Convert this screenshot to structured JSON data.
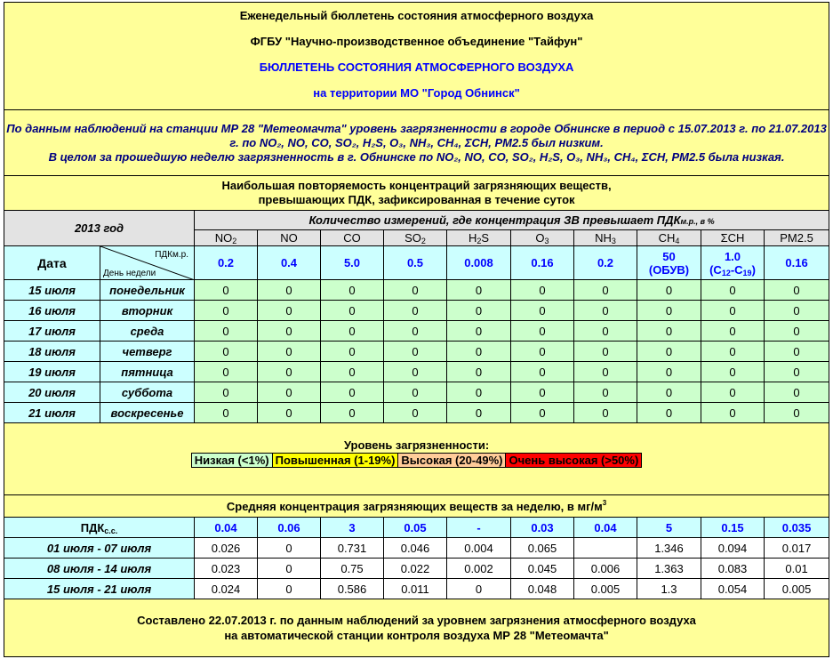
{
  "header": {
    "line1": "Еженедельный бюллетень состояния атмосферного воздуха",
    "line2": "ФГБУ \"Научно-производственное объединение \"Тайфун\"",
    "line3": "БЮЛЛЕТЕНЬ СОСТОЯНИЯ АТМОСФЕРНОГО ВОЗДУХА",
    "line4": "на территории МО \"Город Обнинск\""
  },
  "summary": {
    "p1": "По данным наблюдений на станции МР 28 \"Метеомачта\" уровень загрязненности в городе Обнинске в период с 15.07.2013 г. по 21.07.2013 г. по NO₂, NO, CO, SO₂, H₂S, O₃, NH₃, CH₄, ΣCH, PM2.5 был низким.",
    "p2": "В целом за прошедшую неделю загрязненность в г. Обнинске по NO₂, NO, CO, SO₂, H₂S, O₃, NH₃, CH₄, ΣCH, PM2.5 была низкая."
  },
  "repeat_title": {
    "line1": "Наибольшая повторяемость концентраций загрязняющих веществ,",
    "line2": "превышающих ПДК, зафиксированная в течение суток"
  },
  "table": {
    "year": "2013 год",
    "count_title": "Количество измерений, где концентрация ЗВ превышает ПДК",
    "count_title_sub": "м.р., в %",
    "pollutants": [
      {
        "base": "NO",
        "sub": "2"
      },
      {
        "base": "NO",
        "sub": ""
      },
      {
        "base": "CO",
        "sub": ""
      },
      {
        "base": "SO",
        "sub": "2"
      },
      {
        "base": "H",
        "sub": "2",
        "tail": "S"
      },
      {
        "base": "O",
        "sub": "3"
      },
      {
        "base": "NH",
        "sub": "3"
      },
      {
        "base": "CH",
        "sub": "4"
      },
      {
        "base": "ΣCH",
        "sub": ""
      },
      {
        "base": "PM2.5",
        "sub": ""
      }
    ],
    "date_label": "Дата",
    "pdk_mr_label": "ПДКм.р.",
    "weekday_label": "День недели",
    "pdk_mr": [
      "0.2",
      "0.4",
      "5.0",
      "0.5",
      "0.008",
      "0.16",
      "0.2",
      "50",
      "1.0",
      "0.16"
    ],
    "pdk_mr_note_ch4": "(ОБУВ)",
    "pdk_mr_note_sch": {
      "open": "(C",
      "s1": "12",
      "mid": "-C",
      "s2": "19",
      "close": ")"
    },
    "days": [
      {
        "date": "15 июля",
        "weekday": "понедельник",
        "values": [
          "0",
          "0",
          "0",
          "0",
          "0",
          "0",
          "0",
          "0",
          "0",
          "0"
        ]
      },
      {
        "date": "16 июля",
        "weekday": "вторник",
        "values": [
          "0",
          "0",
          "0",
          "0",
          "0",
          "0",
          "0",
          "0",
          "0",
          "0"
        ]
      },
      {
        "date": "17 июля",
        "weekday": "среда",
        "values": [
          "0",
          "0",
          "0",
          "0",
          "0",
          "0",
          "0",
          "0",
          "0",
          "0"
        ]
      },
      {
        "date": "18 июля",
        "weekday": "четверг",
        "values": [
          "0",
          "0",
          "0",
          "0",
          "0",
          "0",
          "0",
          "0",
          "0",
          "0"
        ]
      },
      {
        "date": "19 июля",
        "weekday": "пятница",
        "values": [
          "0",
          "0",
          "0",
          "0",
          "0",
          "0",
          "0",
          "0",
          "0",
          "0"
        ]
      },
      {
        "date": "20 июля",
        "weekday": "суббота",
        "values": [
          "0",
          "0",
          "0",
          "0",
          "0",
          "0",
          "0",
          "0",
          "0",
          "0"
        ]
      },
      {
        "date": "21 июля",
        "weekday": "воскресенье",
        "values": [
          "0",
          "0",
          "0",
          "0",
          "0",
          "0",
          "0",
          "0",
          "0",
          "0"
        ]
      }
    ]
  },
  "legend": {
    "title": "Уровень загрязненности:",
    "items": [
      {
        "label": "Низкая (<1%)",
        "color": "#ccffcc"
      },
      {
        "label": "Повышенная (1-19%)",
        "color": "#ffff00"
      },
      {
        "label": "Высокая (20-49%)",
        "color": "#ffcc99"
      },
      {
        "label": "Очень высокая (>50%)",
        "color": "#ff0000"
      }
    ]
  },
  "average": {
    "title": "Средняя концентрация загрязняющих веществ за неделю, в мг/м",
    "title_sup": "3",
    "pdk_ss_label": "ПДК",
    "pdk_ss_sub": "с.с.",
    "pdk_ss": [
      "0.04",
      "0.06",
      "3",
      "0.05",
      "-",
      "0.03",
      "0.04",
      "5",
      "0.15",
      "0.035"
    ],
    "rows": [
      {
        "period": "01 июля - 07 июля",
        "values": [
          "0.026",
          "0",
          "0.731",
          "0.046",
          "0.004",
          "0.065",
          "",
          "1.346",
          "0.094",
          "0.017"
        ]
      },
      {
        "period": "08 июля - 14 июля",
        "values": [
          "0.023",
          "0",
          "0.75",
          "0.022",
          "0.002",
          "0.045",
          "0.006",
          "1.363",
          "0.083",
          "0.01"
        ]
      },
      {
        "period": "15 июля - 21 июля",
        "values": [
          "0.024",
          "0",
          "0.586",
          "0.011",
          "0",
          "0.048",
          "0.005",
          "1.3",
          "0.054",
          "0.005"
        ]
      }
    ]
  },
  "footer": {
    "line1": "Составлено 22.07.2013 г. по данным наблюдений за уровнем загрязнения атмосферного воздуха",
    "line2": "на автоматической станции контроля воздуха МР 28 \"Метеомачта\""
  }
}
